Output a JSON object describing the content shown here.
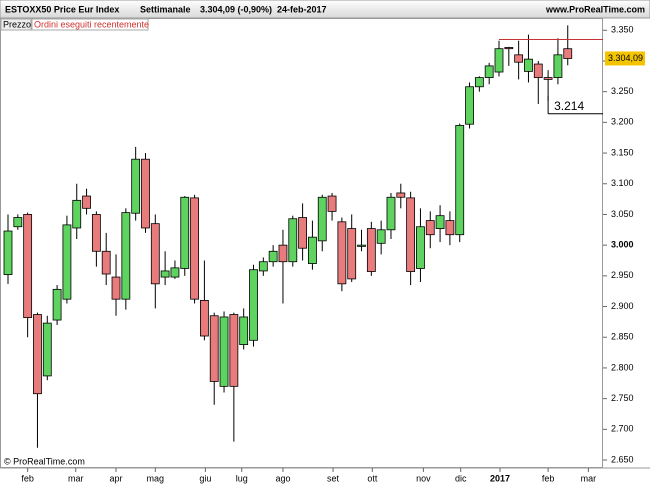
{
  "header": {
    "instrument": "ESTOXX50 Price Eur Index",
    "period": "Settimanale",
    "quote": "3.304,09 (-0,90%)",
    "date": "24-feb-2017",
    "site": "www.ProRealTime.com"
  },
  "panel": {
    "name": "Prezzo",
    "orders": "Ordini eseguiti recentemente",
    "copyright": "© ProRealTime.com"
  },
  "chart_data": {
    "type": "candlestick",
    "categories": [
      null,
      null,
      null,
      null,
      null,
      null,
      null,
      null,
      null,
      null,
      null,
      null,
      null,
      null,
      null,
      null,
      null,
      null,
      null,
      null,
      null,
      null,
      null,
      null,
      null,
      null,
      null,
      null,
      null,
      null,
      null,
      null,
      null,
      null,
      null,
      null,
      null,
      null,
      null,
      null,
      null,
      null,
      null,
      null,
      null,
      null,
      null,
      null,
      null,
      null,
      null,
      null,
      null,
      null,
      null,
      null,
      null,
      null
    ],
    "open": [
      2952,
      3030,
      3050,
      2887,
      2787,
      2878,
      2912,
      3028,
      3080,
      3050,
      2990,
      2948,
      2912,
      3052,
      3140,
      3035,
      2948,
      2948,
      2962,
      3077,
      2910,
      2885,
      2770,
      2887,
      2838,
      2845,
      2958,
      2973,
      3000,
      2973,
      3045,
      2970,
      3007,
      3080,
      3038,
      3027,
      2998,
      3027,
      3003,
      3025,
      3085,
      3077,
      2962,
      3040,
      3027,
      3040,
      3017,
      3197,
      3258,
      3273,
      3282,
      3322,
      3310,
      3283,
      3295,
      3273,
      3273,
      3320
    ],
    "high": [
      3050,
      3050,
      3053,
      2890,
      2885,
      2935,
      3048,
      3100,
      3092,
      3055,
      3020,
      2985,
      3060,
      3160,
      3150,
      3050,
      2990,
      2975,
      3080,
      3082,
      2975,
      2890,
      2892,
      2890,
      2897,
      2968,
      2980,
      3000,
      3025,
      3048,
      3068,
      3040,
      3082,
      3085,
      3045,
      3050,
      3025,
      3038,
      3040,
      3085,
      3100,
      3087,
      3060,
      3055,
      3065,
      3055,
      3198,
      3265,
      3275,
      3297,
      3333,
      3323,
      3333,
      3343,
      3300,
      3285,
      3337,
      3358
    ],
    "low": [
      2937,
      3025,
      2850,
      2670,
      2780,
      2870,
      2905,
      3010,
      3050,
      2965,
      2935,
      2885,
      2895,
      3040,
      3020,
      2897,
      2935,
      2945,
      2950,
      2905,
      2845,
      2740,
      2760,
      2680,
      2830,
      2835,
      2950,
      2965,
      2905,
      2965,
      2975,
      2960,
      2990,
      3040,
      2925,
      2940,
      2990,
      2950,
      2985,
      3010,
      3060,
      2935,
      2940,
      2995,
      3005,
      3000,
      3005,
      3190,
      3250,
      3262,
      3275,
      3292,
      3270,
      3265,
      3230,
      3235,
      3262,
      3293
    ],
    "close": [
      3023,
      3045,
      2882,
      2758,
      2873,
      2928,
      3033,
      3073,
      3060,
      2990,
      2953,
      2912,
      3053,
      3140,
      3028,
      2937,
      2958,
      2963,
      3078,
      2912,
      2852,
      2778,
      2883,
      2770,
      2883,
      2960,
      2973,
      2990,
      2973,
      3043,
      2995,
      3013,
      3078,
      3055,
      2937,
      2945,
      3000,
      2957,
      3025,
      3078,
      3078,
      2957,
      3030,
      3017,
      3048,
      3017,
      3195,
      3258,
      3273,
      3292,
      3320,
      3320,
      3298,
      3303,
      3273,
      3270,
      3310,
      3304.09
    ],
    "up_color": "#5fd35f",
    "down_color": "#e87c7c",
    "ylim": [
      2637,
      3370
    ],
    "yticks": [
      {
        "value": 3350,
        "label": "3.350"
      },
      {
        "value": 3300,
        "label": "3.300"
      },
      {
        "value": 3250,
        "label": "3.250"
      },
      {
        "value": 3200,
        "label": "3.200"
      },
      {
        "value": 3150,
        "label": "3.150"
      },
      {
        "value": 3100,
        "label": "3.100"
      },
      {
        "value": 3050,
        "label": "3.050"
      },
      {
        "value": 3000,
        "label": "3.000"
      },
      {
        "value": 2950,
        "label": "2.950"
      },
      {
        "value": 2900,
        "label": "2.900"
      },
      {
        "value": 2850,
        "label": "2.850"
      },
      {
        "value": 2800,
        "label": "2.800"
      },
      {
        "value": 2750,
        "label": "2.750"
      },
      {
        "value": 2700,
        "label": "2.700"
      },
      {
        "value": 2650,
        "label": "2.650"
      }
    ],
    "xticks": [
      {
        "value": 2.0,
        "label": "feb"
      },
      {
        "value": 6.9,
        "label": "mar"
      },
      {
        "value": 11.0,
        "label": "apr"
      },
      {
        "value": 15.0,
        "label": "mag"
      },
      {
        "value": 20.1,
        "label": "giu"
      },
      {
        "value": 23.8,
        "label": "lug"
      },
      {
        "value": 28.0,
        "label": "ago"
      },
      {
        "value": 33.1,
        "label": "set"
      },
      {
        "value": 37.1,
        "label": "ott"
      },
      {
        "value": 42.3,
        "label": "nov"
      },
      {
        "value": 46.1,
        "label": "dic"
      },
      {
        "value": 50.1,
        "label": "2017"
      },
      {
        "value": 55.0,
        "label": "feb"
      },
      {
        "value": 59.1,
        "label": "mar"
      }
    ],
    "last_price": {
      "value": 3304.09,
      "label": "3.304,09",
      "color": "#f5c400"
    },
    "levels": [
      {
        "value": 3335,
        "color": "#c83232"
      },
      {
        "value": 3214,
        "label": "3.214",
        "color": "#000000"
      }
    ]
  }
}
